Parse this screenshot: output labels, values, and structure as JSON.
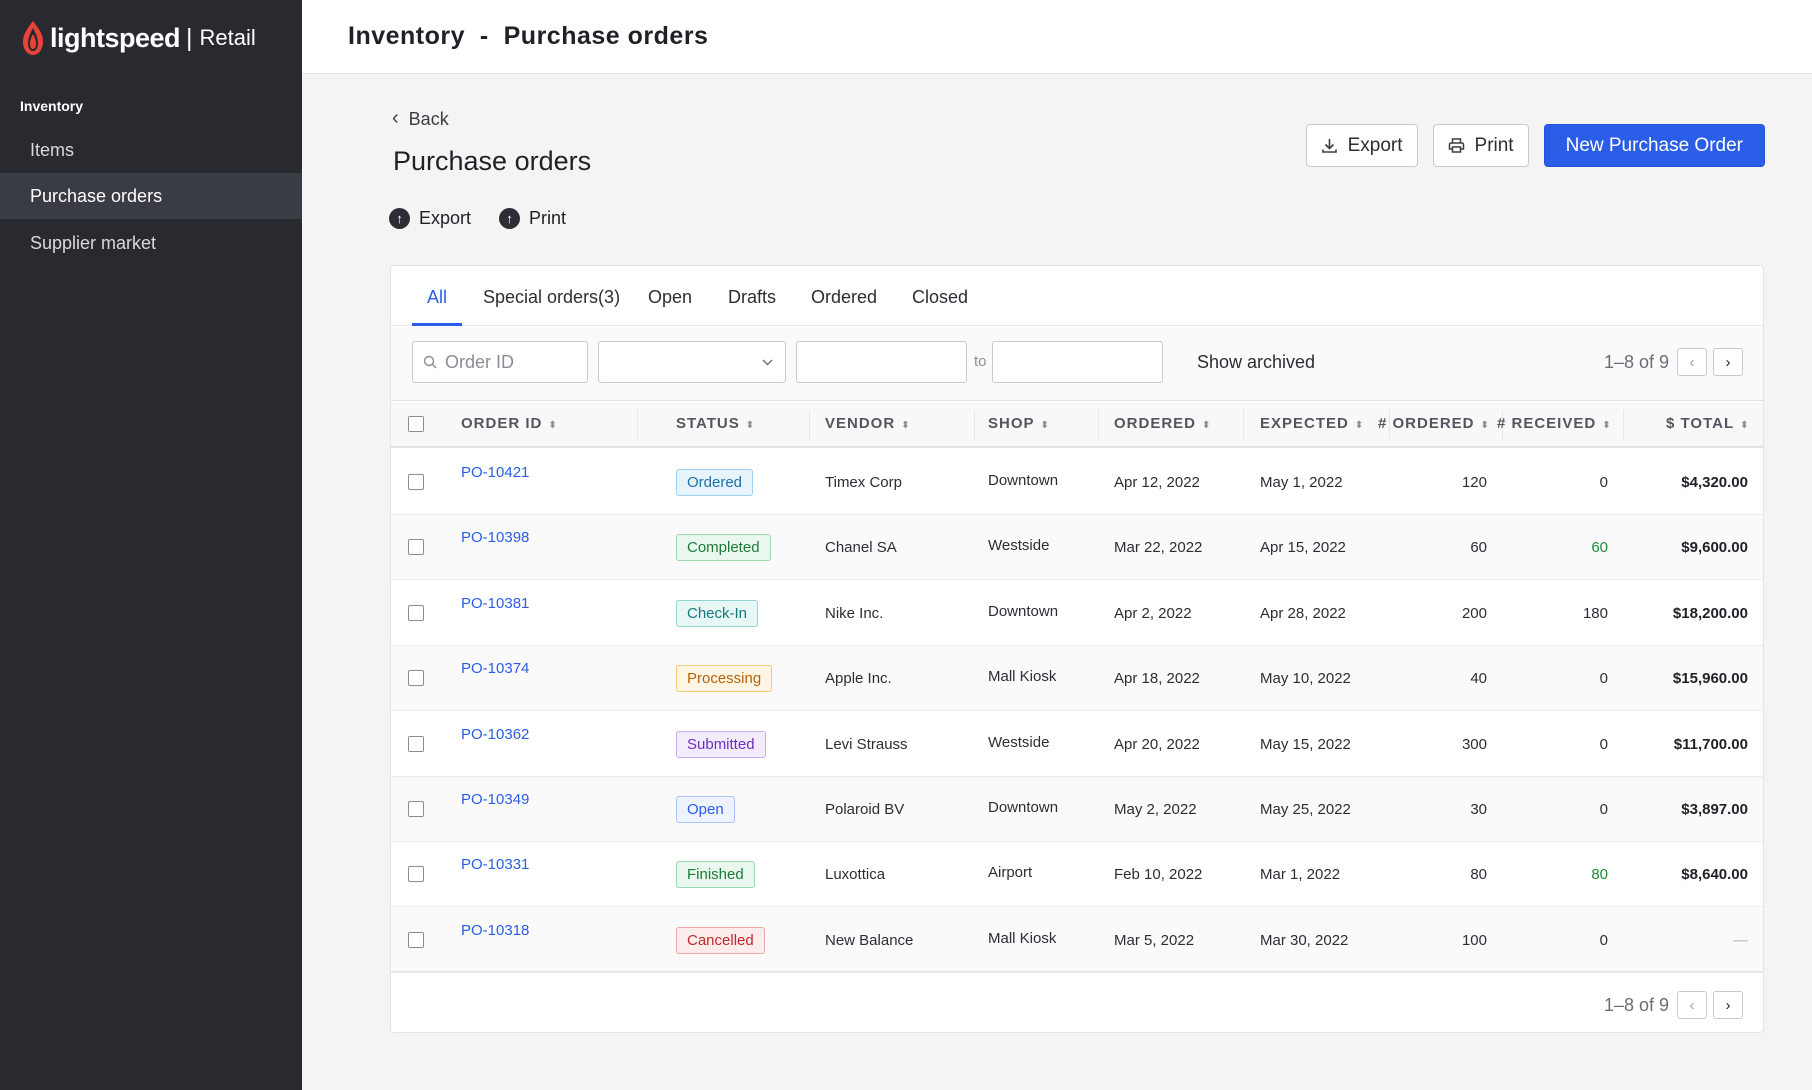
{
  "sidebar": {
    "brand": "lightspeed",
    "product": "Retail",
    "section": "Inventory",
    "items": [
      {
        "label": "Items"
      },
      {
        "label": "Purchase orders"
      },
      {
        "label": "Supplier market"
      }
    ]
  },
  "header": {
    "breadcrumb": "Inventory  -  Purchase orders"
  },
  "page": {
    "back_label": "Back",
    "title": "Purchase orders",
    "export_link": "Export",
    "print_link": "Print",
    "export_button": "Export",
    "print_button": "Print",
    "new_button": "New Purchase Order"
  },
  "tabs": [
    {
      "label": "All"
    },
    {
      "label": "Special orders(3)"
    },
    {
      "label": "Open"
    },
    {
      "label": "Drafts"
    },
    {
      "label": "Ordered"
    },
    {
      "label": "Closed"
    }
  ],
  "filters": {
    "order_id_placeholder": "Order ID",
    "status_select_value": "",
    "date_from": "",
    "date_to": "",
    "to_label": "to",
    "show_archived": "Show archived"
  },
  "pagination": {
    "label": "1–8 of 9"
  },
  "table": {
    "columns": [
      "ORDER ID",
      "STATUS",
      "VENDOR",
      "SHOP",
      "ORDERED",
      "EXPECTED",
      "# ORDERED",
      "# RECEIVED",
      "$ TOTAL"
    ],
    "rows": [
      {
        "id": "PO-10421",
        "status": "Ordered",
        "vendor": "Timex Corp",
        "shop": "Downtown",
        "ordered": "Apr 12, 2022",
        "expected": "May 1, 2022",
        "qty_ordered": "120",
        "qty_received": "0",
        "total": "$4,320.00"
      },
      {
        "id": "PO-10398",
        "status": "Completed",
        "vendor": "Chanel SA",
        "shop": "Westside",
        "ordered": "Mar 22, 2022",
        "expected": "Apr 15, 2022",
        "qty_ordered": "60",
        "qty_received": "60",
        "total": "$9,600.00"
      },
      {
        "id": "PO-10381",
        "status": "Check-In",
        "vendor": "Nike Inc.",
        "shop": "Downtown",
        "ordered": "Apr 2, 2022",
        "expected": "Apr 28, 2022",
        "qty_ordered": "200",
        "qty_received": "180",
        "total": "$18,200.00"
      },
      {
        "id": "PO-10374",
        "status": "Processing",
        "vendor": "Apple Inc.",
        "shop": "Mall Kiosk",
        "ordered": "Apr 18, 2022",
        "expected": "May 10, 2022",
        "qty_ordered": "40",
        "qty_received": "0",
        "total": "$15,960.00"
      },
      {
        "id": "PO-10362",
        "status": "Submitted",
        "vendor": "Levi Strauss",
        "shop": "Westside",
        "ordered": "Apr 20, 2022",
        "expected": "May 15, 2022",
        "qty_ordered": "300",
        "qty_received": "0",
        "total": "$11,700.00"
      },
      {
        "id": "PO-10349",
        "status": "Open",
        "vendor": "Polaroid BV",
        "shop": "Downtown",
        "ordered": "May 2, 2022",
        "expected": "May 25, 2022",
        "qty_ordered": "30",
        "qty_received": "0",
        "total": "$3,897.00"
      },
      {
        "id": "PO-10331",
        "status": "Finished",
        "vendor": "Luxottica",
        "shop": "Airport",
        "ordered": "Feb 10, 2022",
        "expected": "Mar 1, 2022",
        "qty_ordered": "80",
        "qty_received": "80",
        "total": "$8,640.00"
      },
      {
        "id": "PO-10318",
        "status": "Cancelled",
        "vendor": "New Balance",
        "shop": "Mall Kiosk",
        "ordered": "Mar 5, 2022",
        "expected": "Mar 30, 2022",
        "qty_ordered": "100",
        "qty_received": "0",
        "total": "—"
      }
    ]
  },
  "status_colors": {
    "Ordered": {
      "text": "#1b6fa8",
      "bg": "#e8f4fc",
      "border": "#9fd0f0"
    },
    "Completed": {
      "text": "#1f7a3a",
      "bg": "#eaf7ee",
      "border": "#9cd8ad"
    },
    "Check-In": {
      "text": "#177a78",
      "bg": "#e6f7f6",
      "border": "#8fd6d1"
    },
    "Processing": {
      "text": "#b5630a",
      "bg": "#fff5e3",
      "border": "#f1c878"
    },
    "Submitted": {
      "text": "#6b2fc4",
      "bg": "#f3ecfd",
      "border": "#c9aef0"
    },
    "Open": {
      "text": "#2a5ee8",
      "bg": "#eef3fe",
      "border": "#a9c1f5"
    },
    "Finished": {
      "text": "#1f7a3a",
      "bg": "#eaf7ee",
      "border": "#9cd8ad"
    },
    "Cancelled": {
      "text": "#c0282b",
      "bg": "#fdecec",
      "border": "#f0a5a7"
    }
  },
  "colors": {
    "accent": "#2a5ee8",
    "received_full": "#1f8a3a",
    "sidebar_bg": "#282a30"
  }
}
